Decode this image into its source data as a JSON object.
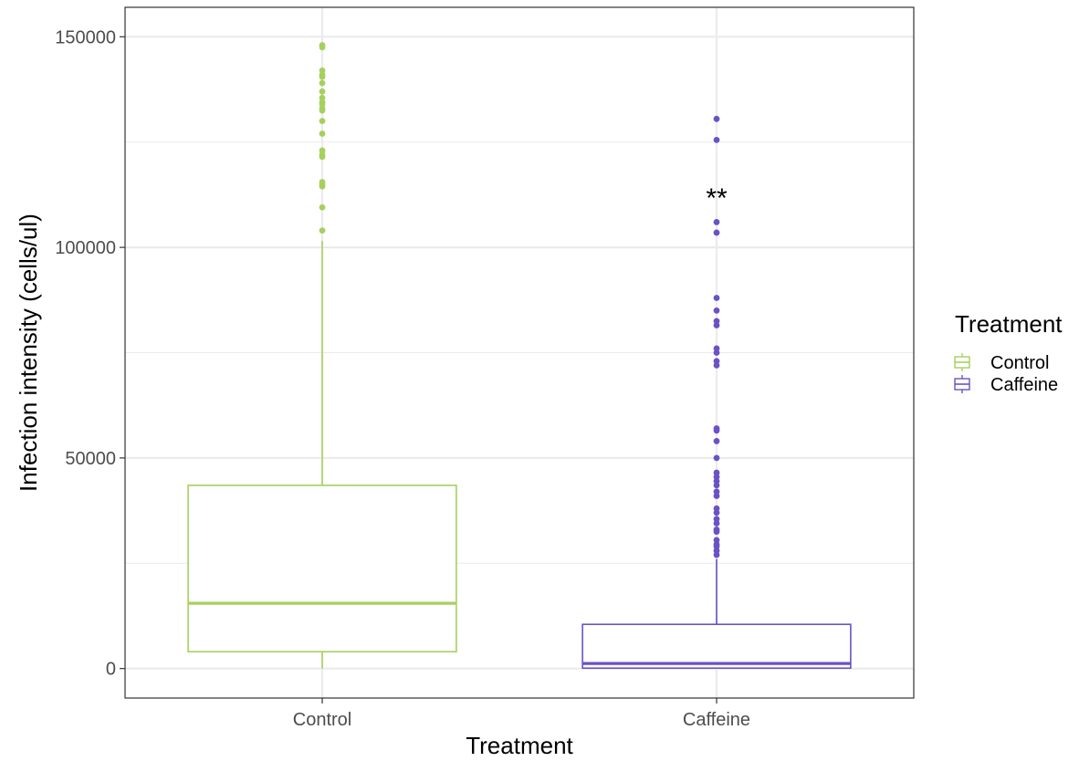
{
  "chart_data": {
    "type": "boxplot",
    "xlabel": "Treatment",
    "ylabel": "Infection intensity (cells/ul)",
    "ylim": [
      -7000,
      157000
    ],
    "y_ticks": [
      0,
      50000,
      100000,
      150000
    ],
    "y_tick_labels": [
      "0",
      "50000",
      "100000",
      "150000"
    ],
    "grid": true,
    "legend": {
      "title": "Treatment",
      "position": "right"
    },
    "categories": [
      "Control",
      "Caffeine"
    ],
    "series": [
      {
        "name": "Control",
        "color": "#a6d05e",
        "q1": 4000,
        "median": 15500,
        "q3": 43500,
        "whisker_low": 0,
        "whisker_high": 101500,
        "outliers": [
          148000,
          147500,
          142000,
          141000,
          140500,
          139000,
          137000,
          135500,
          134500,
          134000,
          133000,
          132500,
          130000,
          127000,
          123000,
          122000,
          121500,
          115500,
          115000,
          114500,
          109500,
          104000
        ]
      },
      {
        "name": "Caffeine",
        "color": "#6a52c4",
        "q1": 100,
        "median": 1200,
        "q3": 10500,
        "whisker_low": 0,
        "whisker_high": 26000,
        "outliers": [
          130500,
          125500,
          106000,
          103500,
          88000,
          85000,
          82500,
          81500,
          76000,
          75000,
          73000,
          72000,
          57000,
          56500,
          54000,
          50000,
          46500,
          45500,
          44500,
          43500,
          42000,
          41000,
          38000,
          37000,
          35500,
          34500,
          33000,
          32500,
          30500,
          29500,
          29000,
          28000,
          27000
        ]
      }
    ],
    "annotations": [
      {
        "text": "**",
        "category": "Caffeine",
        "y": 113000
      }
    ]
  }
}
